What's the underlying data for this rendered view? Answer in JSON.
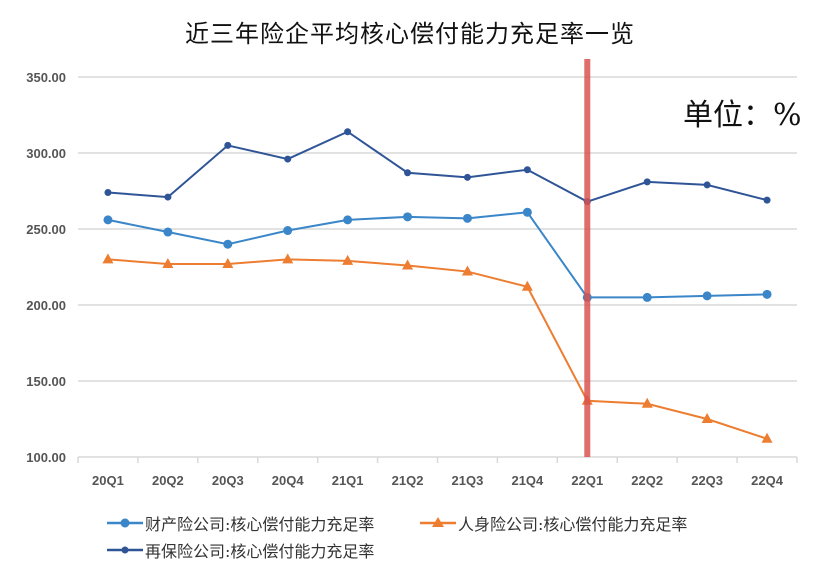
{
  "chart_data": {
    "type": "line",
    "title": "近三年险企平均核心偿付能力充足率一览",
    "annotation": "单位：%",
    "categories": [
      "20Q1",
      "20Q2",
      "20Q3",
      "20Q4",
      "21Q1",
      "21Q2",
      "21Q3",
      "21Q4",
      "22Q1",
      "22Q2",
      "22Q3",
      "22Q4"
    ],
    "ylim": [
      100,
      350
    ],
    "yticks": [
      "100.00",
      "150.00",
      "200.00",
      "250.00",
      "300.00",
      "350.00"
    ],
    "grid": true,
    "legend_position": "bottom",
    "highlight_category": "22Q1",
    "highlight_color": "#d9534f",
    "series": [
      {
        "name": "财产险公司:核心偿付能力充足率",
        "color": "#3a86c8",
        "marker": "circle-large",
        "values": [
          256,
          248,
          240,
          249,
          256,
          258,
          257,
          261,
          205,
          205,
          206,
          207
        ]
      },
      {
        "name": "人身险公司:核心偿付能力充足率",
        "color": "#ed7d31",
        "marker": "triangle",
        "values": [
          230,
          227,
          227,
          230,
          229,
          226,
          222,
          212,
          137,
          135,
          125,
          112
        ]
      },
      {
        "name": "再保险公司:核心偿付能力充足率",
        "color": "#2f5597",
        "marker": "circle",
        "values": [
          274,
          271,
          305,
          296,
          314,
          287,
          284,
          289,
          268,
          281,
          279,
          269
        ]
      }
    ]
  }
}
